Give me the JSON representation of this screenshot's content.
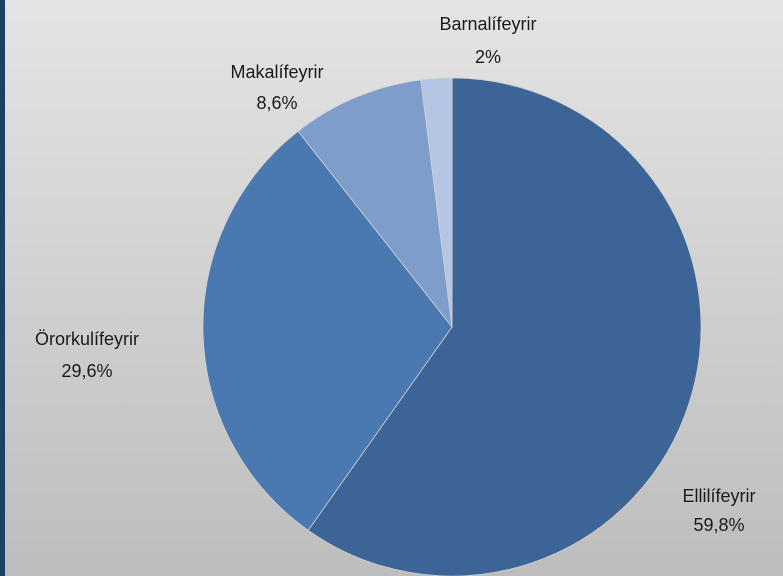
{
  "chart_data": {
    "type": "pie",
    "categories": [
      "Ellilífeyrir",
      "Örorkulífeyrir",
      "Makalífeyrir",
      "Barnalífeyrir"
    ],
    "values": [
      59.8,
      29.6,
      8.6,
      2
    ],
    "value_labels": [
      "59,8%",
      "29,6%",
      "8,6%",
      "2%"
    ],
    "colors": [
      "#3d6496",
      "#4a78b0",
      "#7f9dcb",
      "#b4c6e4"
    ]
  }
}
